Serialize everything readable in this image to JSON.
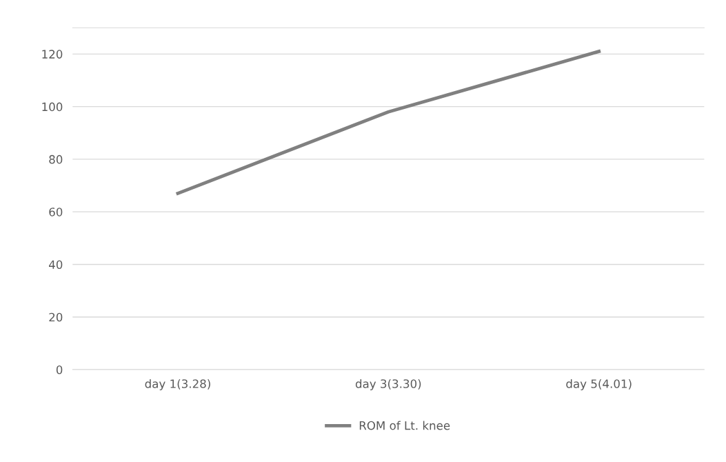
{
  "chart_data": {
    "type": "line",
    "categories": [
      "day 1(3.28)",
      "day 3(3.30)",
      "day 5(4.01)"
    ],
    "series": [
      {
        "name": "ROM of Lt. knee",
        "color": "#808080",
        "values": [
          67,
          98,
          121
        ]
      }
    ],
    "ylim": [
      0,
      130
    ],
    "yticks": [
      0,
      20,
      40,
      60,
      80,
      100,
      120
    ],
    "grid": "y",
    "legend": "bottom",
    "marker": "none",
    "line_style": "solid"
  }
}
